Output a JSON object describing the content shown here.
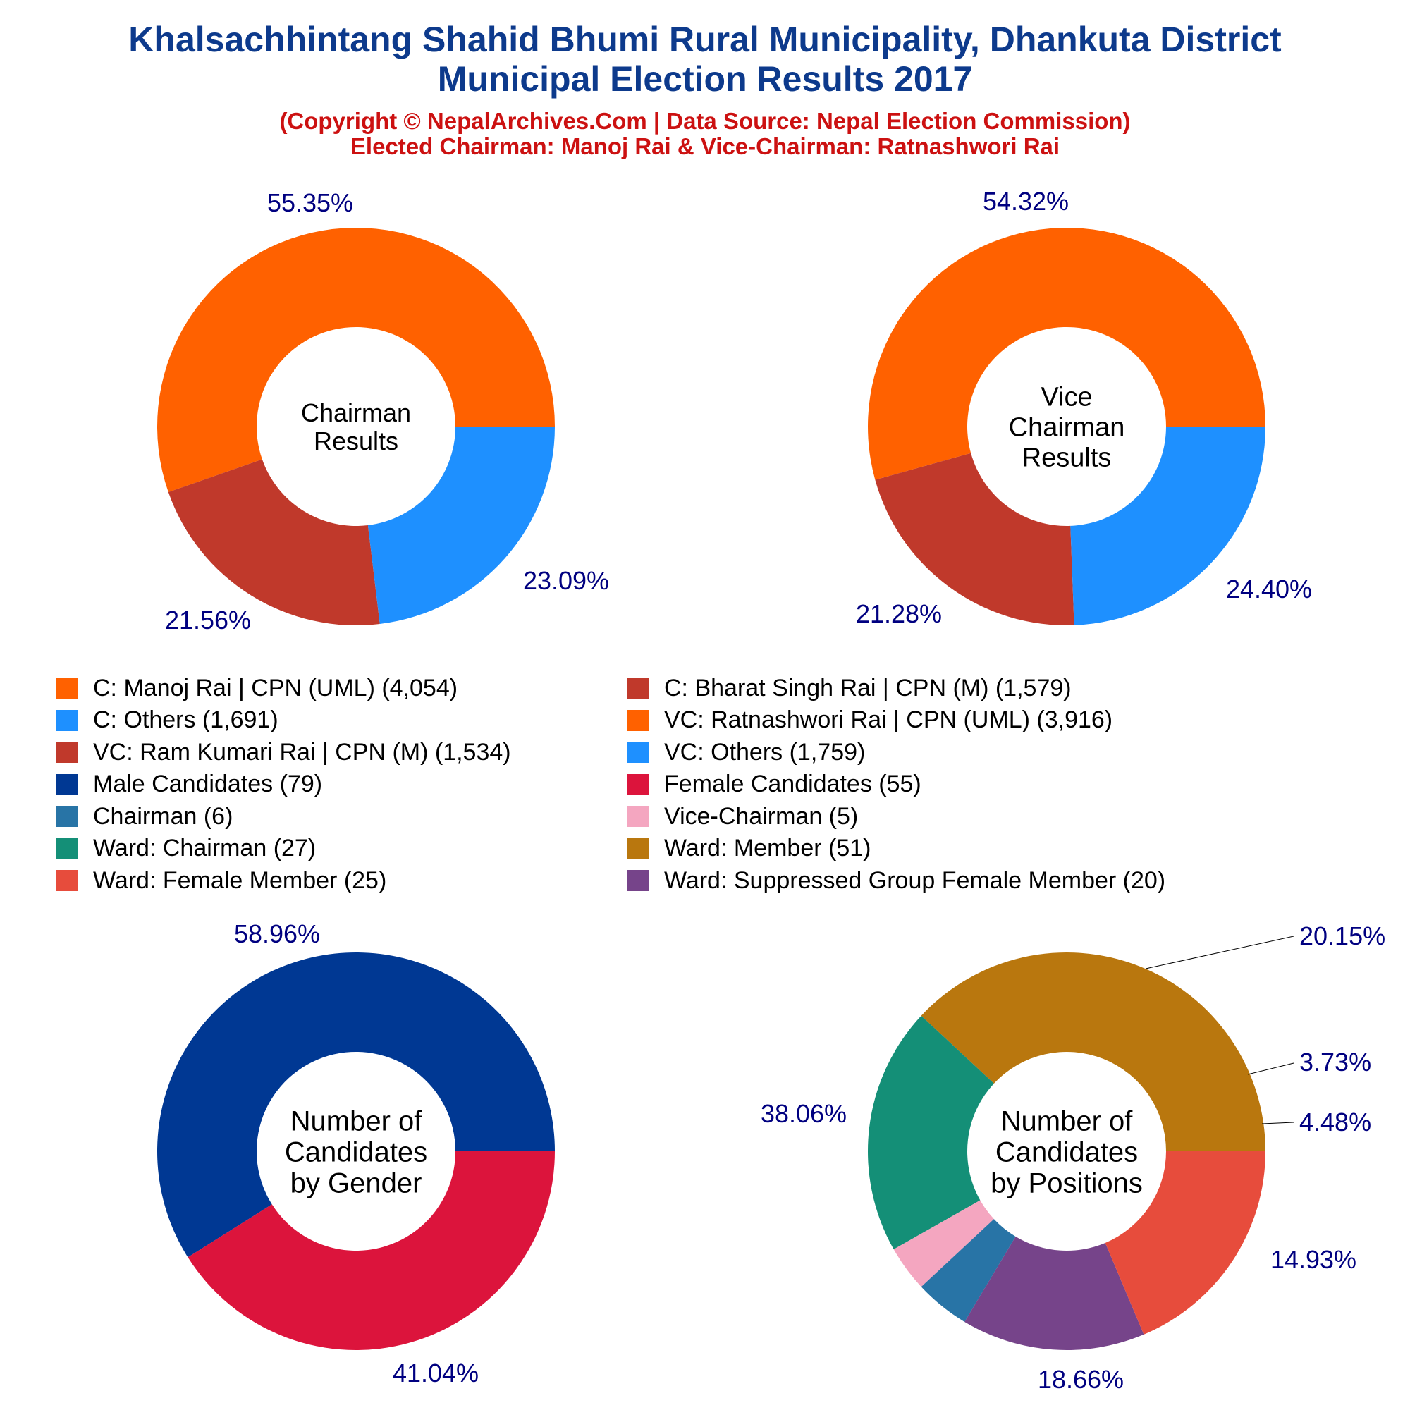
{
  "header": {
    "title_line1": "Khalsachhintang Shahid Bhumi Rural Municipality, Dhankuta District",
    "title_line2": "Municipal Election Results 2017",
    "subtitle_line1": "(Copyright © NepalArchives.Com | Data Source: Nepal Election Commission)",
    "subtitle_line2": "Elected Chairman: Manoj Rai & Vice-Chairman: Ratnashwori Rai"
  },
  "legend": [
    {
      "label": "C: Manoj Rai | CPN (UML) (4,054)",
      "color": "#ff6100"
    },
    {
      "label": "C: Bharat Singh Rai | CPN (M) (1,579)",
      "color": "#c0392b"
    },
    {
      "label": "C: Others (1,691)",
      "color": "#1e90ff"
    },
    {
      "label": "VC: Ratnashwori Rai | CPN (UML) (3,916)",
      "color": "#ff6100"
    },
    {
      "label": "VC: Ram Kumari Rai | CPN (M) (1,534)",
      "color": "#c0392b"
    },
    {
      "label": "VC: Others (1,759)",
      "color": "#1e90ff"
    },
    {
      "label": "Male Candidates (79)",
      "color": "#003893"
    },
    {
      "label": "Female Candidates (55)",
      "color": "#dc143c"
    },
    {
      "label": "Chairman (6)",
      "color": "#2874a6"
    },
    {
      "label": "Vice-Chairman (5)",
      "color": "#f4a6c0"
    },
    {
      "label": "Ward: Chairman (27)",
      "color": "#148f77"
    },
    {
      "label": "Ward: Member (51)",
      "color": "#b9770e"
    },
    {
      "label": "Ward: Female Member (25)",
      "color": "#e74c3c"
    },
    {
      "label": "Ward: Suppressed Group Female Member (20)",
      "color": "#76448a"
    }
  ],
  "chart_data": [
    {
      "type": "pie",
      "center_label": [
        "Chairman",
        "Results"
      ],
      "slices": [
        {
          "name": "C: Manoj Rai | CPN (UML)",
          "value": 4054,
          "percent_label": "55.35%",
          "color": "#ff6100"
        },
        {
          "name": "C: Bharat Singh Rai | CPN (M)",
          "value": 1579,
          "percent_label": "21.56%",
          "color": "#c0392b"
        },
        {
          "name": "C: Others",
          "value": 1691,
          "percent_label": "23.09%",
          "color": "#1e90ff"
        }
      ]
    },
    {
      "type": "pie",
      "center_label": [
        "Vice",
        "Chairman",
        "Results"
      ],
      "slices": [
        {
          "name": "VC: Ratnashwori Rai | CPN (UML)",
          "value": 3916,
          "percent_label": "54.32%",
          "color": "#ff6100"
        },
        {
          "name": "VC: Ram Kumari Rai | CPN (M)",
          "value": 1534,
          "percent_label": "21.28%",
          "color": "#c0392b"
        },
        {
          "name": "VC: Others",
          "value": 1759,
          "percent_label": "24.40%",
          "color": "#1e90ff"
        }
      ]
    },
    {
      "type": "pie",
      "center_label": [
        "Number of",
        "Candidates",
        "by Gender"
      ],
      "slices": [
        {
          "name": "Male Candidates",
          "value": 79,
          "percent_label": "58.96%",
          "color": "#003893"
        },
        {
          "name": "Female Candidates",
          "value": 55,
          "percent_label": "41.04%",
          "color": "#dc143c"
        }
      ]
    },
    {
      "type": "pie",
      "center_label": [
        "Number of",
        "Candidates",
        "by Positions"
      ],
      "slices": [
        {
          "name": "Ward: Member",
          "value": 51,
          "percent_label": "38.06%",
          "color": "#b9770e"
        },
        {
          "name": "Ward: Chairman",
          "value": 27,
          "percent_label": "20.15%",
          "color": "#148f77"
        },
        {
          "name": "Vice-Chairman",
          "value": 5,
          "percent_label": "3.73%",
          "color": "#f4a6c0"
        },
        {
          "name": "Chairman",
          "value": 6,
          "percent_label": "4.48%",
          "color": "#2874a6"
        },
        {
          "name": "Ward: Suppressed Group Female Member",
          "value": 20,
          "percent_label": "14.93%",
          "color": "#76448a"
        },
        {
          "name": "Ward: Female Member",
          "value": 25,
          "percent_label": "18.66%",
          "color": "#e74c3c"
        }
      ]
    }
  ]
}
